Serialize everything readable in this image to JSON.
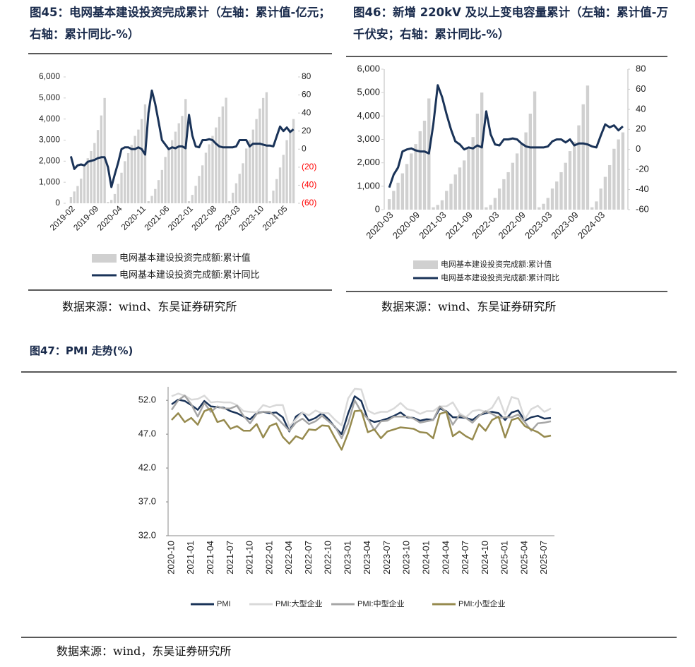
{
  "chart_data": [
    {
      "type": "combo",
      "title": "图45：电网基本建设投资完成累计（左轴：累计值-亿元；右轴：累计同比-%）",
      "source": "数据来源：wind、东吴证券研究所",
      "categories": [
        "2019-02",
        null,
        null,
        null,
        null,
        null,
        null,
        "2019-09",
        null,
        null,
        null,
        null,
        null,
        null,
        "2020-04",
        null,
        null,
        null,
        null,
        null,
        null,
        "2020-11",
        null,
        null,
        null,
        null,
        null,
        null,
        "2021-06",
        null,
        null,
        null,
        null,
        null,
        null,
        "2022-01",
        null,
        null,
        null,
        null,
        null,
        null,
        "2022-08",
        null,
        null,
        null,
        null,
        null,
        null,
        "2023-03",
        null,
        null,
        null,
        null,
        null,
        null,
        "2023-10",
        null,
        null,
        null,
        null,
        null,
        null,
        "2024-05",
        null,
        null,
        null
      ],
      "series": [
        {
          "name": "电网基本建设投资完成额:累计值",
          "type": "bar",
          "color": "#d0d0d0",
          "values": [
            300,
            560,
            820,
            1170,
            1800,
            2140,
            2480,
            2860,
            3480,
            4170,
            5000,
            60,
            160,
            440,
            920,
            1450,
            2000,
            2380,
            2770,
            3200,
            3500,
            4000,
            4699,
            100,
            350,
            680,
            1100,
            1580,
            2200,
            2600,
            3000,
            3400,
            3800,
            4150,
            4951,
            100,
            400,
            830,
            1300,
            1800,
            2400,
            2800,
            3200,
            3600,
            4100,
            4600,
            5012,
            100,
            500,
            950,
            1400,
            1900,
            2600,
            3000,
            3500,
            4000,
            4500,
            5000,
            5275,
            100,
            600,
            1150,
            1700,
            2300,
            3000,
            3500,
            4000
          ]
        },
        {
          "name": "电网基本建设投资完成额:累计同比",
          "type": "line",
          "axis": "y2",
          "color": "#1a3358",
          "values": [
            -8,
            -22,
            -18,
            -17,
            -18,
            -14,
            -13,
            -12,
            -10,
            -9,
            -9,
            -20,
            -42,
            -28,
            -15,
            0,
            2,
            2,
            0,
            0,
            2,
            0,
            -6,
            40,
            65,
            50,
            30,
            10,
            5,
            0,
            2,
            1,
            3,
            3,
            1,
            38,
            15,
            3,
            2,
            10,
            10,
            11,
            10,
            6,
            3,
            2,
            2,
            2,
            2,
            3,
            10,
            10,
            10,
            3,
            6,
            6,
            6,
            5,
            4,
            4,
            3,
            14,
            25,
            20,
            24,
            19,
            22
          ]
        }
      ],
      "ylim": [
        0,
        6000
      ],
      "yticks": [
        0,
        {
          "value": 1000,
          "label": "1,000"
        },
        {
          "value": 2000,
          "label": "2,000"
        },
        {
          "value": 3000,
          "label": "3,000"
        },
        {
          "value": 4000,
          "label": "4,000"
        },
        {
          "value": 5000,
          "label": "5,000"
        },
        {
          "value": 6000,
          "label": "6,000"
        }
      ],
      "y2lim": [
        -60,
        80
      ],
      "y2ticks": [
        {
          "value": -60,
          "label": "(60)"
        },
        {
          "value": -40,
          "label": "(40)"
        },
        {
          "value": -20,
          "label": "(20)"
        },
        0,
        20,
        40,
        60,
        80
      ],
      "y2tick_negative_color": "#ff0000",
      "grid": false
    },
    {
      "type": "combo",
      "title": "图46：新增 220kV 及以上变电容量累计（左轴：累计值-万千伏安；右轴：累计同比-%）",
      "source": "数据来源：wind、东吴证券研究所",
      "categories": [
        "2020-03",
        null,
        null,
        null,
        null,
        null,
        "2020-09",
        null,
        null,
        null,
        null,
        null,
        "2021-03",
        null,
        null,
        null,
        null,
        null,
        "2021-09",
        null,
        null,
        null,
        null,
        null,
        "2022-03",
        null,
        null,
        null,
        null,
        null,
        "2022-09",
        null,
        null,
        null,
        null,
        null,
        "2023-03",
        null,
        null,
        null,
        null,
        null,
        "2023-09",
        null,
        null,
        null,
        null,
        null,
        "2024-03",
        null,
        null,
        null,
        null,
        null
      ],
      "series": [
        {
          "name": "电网基本建设投资完成额:累计值",
          "type": "bar",
          "color": "#d0d0d0",
          "values": [
            450,
            800,
            1150,
            1550,
            1950,
            2400,
            2800,
            3350,
            3800,
            4750,
            100,
            200,
            400,
            800,
            1100,
            1500,
            1800,
            2100,
            2600,
            3100,
            4100,
            5000,
            100,
            200,
            500,
            900,
            1300,
            1600,
            2000,
            2400,
            2800,
            3300,
            4100,
            5050,
            100,
            250,
            500,
            900,
            1200,
            1600,
            2000,
            2500,
            2900,
            3600,
            4500,
            5300,
            100,
            350,
            900,
            1400,
            1900,
            2600,
            3000,
            3300
          ]
        },
        {
          "name": "电网基本建设投资完成额:累计同比",
          "type": "line",
          "axis": "y2",
          "color": "#1a3358",
          "values": [
            -38,
            -25,
            -18,
            -2,
            0,
            1,
            -1,
            -2,
            -2,
            -4,
            25,
            64,
            52,
            35,
            20,
            8,
            5,
            0,
            2,
            1,
            4,
            2,
            38,
            15,
            5,
            4,
            10,
            10,
            11,
            10,
            6,
            3,
            2,
            2,
            2,
            2,
            3,
            8,
            10,
            10,
            7,
            10,
            4,
            6,
            6,
            5,
            3,
            2,
            14,
            25,
            22,
            24,
            19,
            23
          ]
        }
      ],
      "ylim": [
        0,
        6000
      ],
      "yticks": [
        0,
        {
          "value": 1000,
          "label": "1,000"
        },
        {
          "value": 2000,
          "label": "2,000"
        },
        {
          "value": 3000,
          "label": "3,000"
        },
        {
          "value": 4000,
          "label": "4,000"
        },
        {
          "value": 5000,
          "label": "5,000"
        },
        {
          "value": 6000,
          "label": "6,000"
        }
      ],
      "y2lim": [
        -60,
        80
      ],
      "y2ticks": [
        -60,
        -40,
        -20,
        0,
        20,
        40,
        60,
        80
      ],
      "grid": false
    },
    {
      "type": "line",
      "title": "图47：PMI 走势(%)",
      "source": "数据来源：wind，东吴证券研究所",
      "categories": [
        "2020-10",
        null,
        null,
        "2021-01",
        null,
        null,
        "2021-04",
        null,
        null,
        "2021-07",
        null,
        null,
        "2021-10",
        null,
        null,
        "2022-01",
        null,
        null,
        "2022-04",
        null,
        null,
        "2022-07",
        null,
        null,
        "2022-10",
        null,
        null,
        "2023-01",
        null,
        null,
        "2023-04",
        null,
        null,
        "2023-07",
        null,
        null,
        "2023-10",
        null,
        null,
        "2024-01",
        null,
        null,
        "2024-04",
        null,
        null,
        "2024-07",
        null,
        null,
        "2024-10",
        null,
        null,
        "2025-01",
        null,
        null,
        "2025-04",
        null,
        null,
        "2025-07",
        null
      ],
      "series": [
        {
          "name": "PMI",
          "color": "#1a3358",
          "values": [
            51.4,
            52.1,
            51.9,
            51.3,
            50.6,
            51.9,
            51.1,
            51.0,
            50.9,
            50.4,
            50.1,
            49.6,
            49.2,
            50.1,
            50.3,
            50.1,
            50.2,
            49.5,
            47.4,
            49.6,
            50.2,
            49.0,
            49.4,
            50.1,
            49.2,
            48.0,
            47.0,
            50.1,
            52.6,
            51.9,
            49.2,
            48.8,
            49.0,
            49.3,
            49.7,
            50.2,
            49.5,
            49.4,
            49.0,
            49.2,
            49.1,
            50.8,
            50.4,
            49.5,
            49.5,
            49.4,
            49.1,
            49.8,
            50.1,
            50.3,
            50.1,
            49.1,
            50.2,
            50.5,
            49.0,
            49.5,
            49.7,
            49.3,
            49.4
          ]
        },
        {
          "name": "PMI:大型企业",
          "color": "#d9d9d9",
          "values": [
            52.6,
            53.0,
            52.7,
            52.1,
            52.2,
            52.7,
            51.7,
            51.8,
            51.7,
            51.7,
            51.3,
            50.4,
            50.3,
            50.2,
            51.3,
            51.0,
            51.3,
            51.3,
            48.1,
            49.2,
            50.2,
            49.8,
            50.5,
            50.1,
            50.1,
            49.1,
            48.3,
            52.3,
            53.7,
            53.6,
            50.5,
            50.0,
            50.3,
            50.3,
            50.8,
            51.6,
            50.7,
            50.5,
            50.0,
            50.4,
            50.4,
            51.1,
            51.1,
            51.7,
            50.1,
            49.5,
            50.4,
            50.6,
            50.3,
            50.9,
            52.5,
            49.9,
            52.5,
            52.2,
            49.2,
            50.7,
            51.2,
            50.3,
            50.8
          ]
        },
        {
          "name": "PMI:中型企业",
          "color": "#a6a6a6",
          "values": [
            50.6,
            52.0,
            52.7,
            51.4,
            49.6,
            51.6,
            50.3,
            51.1,
            50.8,
            50.8,
            51.2,
            49.7,
            48.6,
            50.0,
            50.3,
            50.3,
            49.5,
            48.5,
            47.5,
            48.7,
            49.3,
            48.5,
            48.9,
            49.7,
            48.9,
            48.1,
            46.4,
            48.6,
            52.0,
            50.3,
            49.3,
            47.6,
            48.9,
            49.0,
            49.6,
            49.6,
            49.6,
            49.3,
            48.7,
            48.9,
            49.1,
            51.1,
            50.3,
            48.4,
            49.8,
            49.4,
            48.7,
            49.7,
            50.4,
            50.0,
            49.4,
            49.5,
            49.5,
            49.9,
            48.8,
            47.5,
            48.6,
            48.7,
            48.9
          ]
        },
        {
          "name": "PMI:小型企业",
          "color": "#968a4e",
          "values": [
            49.1,
            50.1,
            48.8,
            49.4,
            48.4,
            50.4,
            50.8,
            48.8,
            49.1,
            47.8,
            48.2,
            47.5,
            47.5,
            48.5,
            46.5,
            48.2,
            48.6,
            46.6,
            45.6,
            46.7,
            46.3,
            47.7,
            47.6,
            48.3,
            48.2,
            46.4,
            44.7,
            47.2,
            50.4,
            50.5,
            47.3,
            47.7,
            46.4,
            47.4,
            47.7,
            48.0,
            47.9,
            47.8,
            47.3,
            47.2,
            46.4,
            50.0,
            50.3,
            46.7,
            47.4,
            46.7,
            46.2,
            48.5,
            47.5,
            49.1,
            49.6,
            46.5,
            49.1,
            49.4,
            48.2,
            47.7,
            47.3,
            46.6,
            46.8
          ]
        }
      ],
      "ylim": [
        32,
        54
      ],
      "yticks": [
        {
          "value": 32,
          "label": "32.0"
        },
        {
          "value": 37,
          "label": "37.0"
        },
        {
          "value": 42,
          "label": "42.0"
        },
        {
          "value": 47,
          "label": "47.0"
        },
        {
          "value": 52,
          "label": "52.0"
        }
      ],
      "grid": false
    }
  ]
}
